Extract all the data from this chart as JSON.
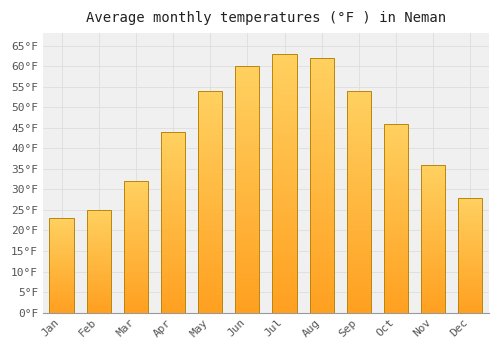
{
  "title": "Average monthly temperatures (°F ) in Neman",
  "months": [
    "Jan",
    "Feb",
    "Mar",
    "Apr",
    "May",
    "Jun",
    "Jul",
    "Aug",
    "Sep",
    "Oct",
    "Nov",
    "Dec"
  ],
  "values": [
    23,
    25,
    32,
    44,
    54,
    60,
    63,
    62,
    54,
    46,
    36,
    28
  ],
  "bar_color_bottom": "#FFA020",
  "bar_color_top": "#FFD060",
  "bar_edge_color": "#B8860B",
  "ylim": [
    0,
    68
  ],
  "yticks": [
    0,
    5,
    10,
    15,
    20,
    25,
    30,
    35,
    40,
    45,
    50,
    55,
    60,
    65
  ],
  "plot_bg_color": "#F0F0F0",
  "fig_bg_color": "#FFFFFF",
  "grid_color": "#DDDDDD",
  "title_fontsize": 10,
  "tick_fontsize": 8,
  "font_family": "monospace"
}
